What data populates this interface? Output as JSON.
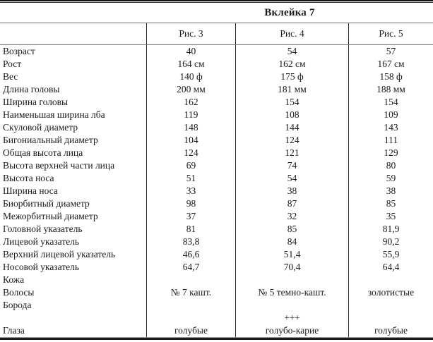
{
  "title": "Вклейка 7",
  "columns": [
    "Рис. 3",
    "Рис. 4",
    "Рис. 5"
  ],
  "rows": [
    {
      "label": "Возраст",
      "values": [
        "40",
        "54",
        "57"
      ]
    },
    {
      "label": "Рост",
      "values": [
        "164 см",
        "162 см",
        "167 см"
      ]
    },
    {
      "label": "Вес",
      "values": [
        "140 ф",
        "175 ф",
        "158 ф"
      ]
    },
    {
      "label": "Длина головы",
      "values": [
        "200 мм",
        "181 мм",
        "188 мм"
      ]
    },
    {
      "label": "Ширина головы",
      "values": [
        "162",
        "154",
        "154"
      ]
    },
    {
      "label": "Наименьшая ширина лба",
      "values": [
        "119",
        "108",
        "109"
      ]
    },
    {
      "label": "Скуловой диаметр",
      "values": [
        "148",
        "144",
        "143"
      ]
    },
    {
      "label": "Бигониальный диаметр",
      "values": [
        "104",
        "124",
        "111"
      ]
    },
    {
      "label": "Общая высота лица",
      "values": [
        "124",
        "121",
        "129"
      ]
    },
    {
      "label": "Высота верхней части лица",
      "values": [
        "69",
        "74",
        "80"
      ]
    },
    {
      "label": "Высота носа",
      "values": [
        "51",
        "54",
        "59"
      ]
    },
    {
      "label": "Ширина носа",
      "values": [
        "33",
        "38",
        "38"
      ]
    },
    {
      "label": "Биорбитный диаметр",
      "values": [
        "98",
        "87",
        "85"
      ]
    },
    {
      "label": "Межорбитный диаметр",
      "values": [
        "37",
        "32",
        "35"
      ]
    },
    {
      "label": "Головной указатель",
      "values": [
        "81",
        "85",
        "81,9"
      ]
    },
    {
      "label": "Лицевой указатель",
      "values": [
        "83,8",
        "84",
        "90,2"
      ]
    },
    {
      "label": "Верхний лицевой указатель",
      "values": [
        "46,6",
        "51,4",
        "55,9"
      ]
    },
    {
      "label": "Носовой указатель",
      "values": [
        "64,7",
        "70,4",
        "64,4"
      ]
    },
    {
      "label": "Кожа",
      "values": [
        "",
        "",
        ""
      ]
    },
    {
      "label": "Волосы",
      "values": [
        "№ 7 кашт.",
        "№ 5 темно-кашт.",
        "золотистые"
      ]
    },
    {
      "label": "Борода",
      "values": [
        "",
        "",
        ""
      ]
    },
    {
      "label": "",
      "values": [
        "",
        "+++",
        ""
      ]
    },
    {
      "label": "Глаза",
      "values": [
        "голубые",
        "голубо-карие",
        "голубые"
      ]
    }
  ]
}
